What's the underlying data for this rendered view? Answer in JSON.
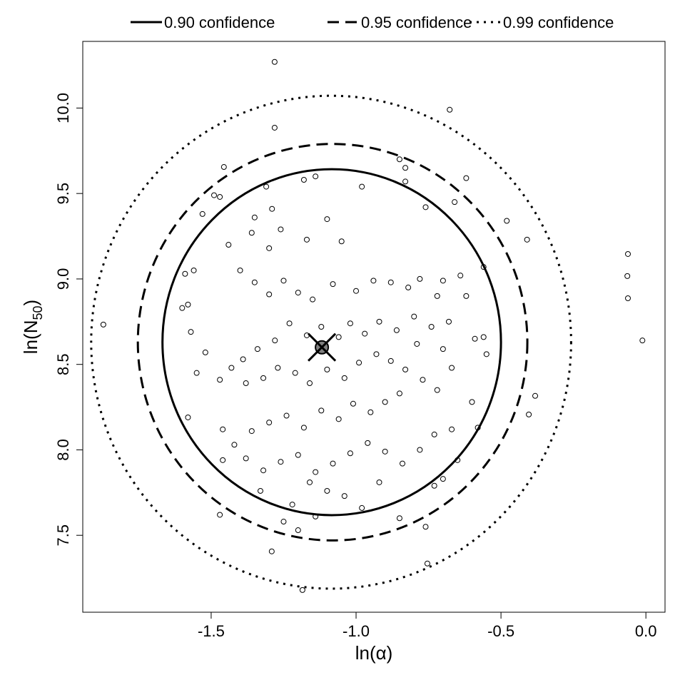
{
  "chart_data": {
    "type": "scatter",
    "title": "",
    "xlabel": "ln(α)",
    "ylabel_main": "ln(N",
    "ylabel_sub": "50",
    "ylabel_close": ")",
    "xlim": [
      -1.943,
      0.066
    ],
    "ylim": [
      7.05,
      10.39
    ],
    "xticks": [
      -1.5,
      -1.0,
      -0.5,
      0.0
    ],
    "xtick_labels": [
      "-1.5",
      "-1.0",
      "-0.5",
      "0.0"
    ],
    "yticks": [
      7.5,
      8.0,
      8.5,
      9.0,
      9.5,
      10.0
    ],
    "ytick_labels": [
      "7.5",
      "8.0",
      "8.5",
      "9.0",
      "9.5",
      "10.0"
    ],
    "grid": false,
    "legend_placement": "top-outside",
    "legend": [
      {
        "label": "0.90 confidence",
        "style": "solid"
      },
      {
        "label": "0.95 confidence",
        "style": "dashed"
      },
      {
        "label": "0.99 confidence",
        "style": "dotted"
      }
    ],
    "point_estimate": {
      "x": -1.118,
      "y": 8.6
    },
    "confidence_regions": [
      {
        "level": 0.9,
        "style": "solid",
        "center": [
          -1.084,
          8.63
        ],
        "half_width_x": 0.584,
        "half_width_y": 1.012
      },
      {
        "level": 0.95,
        "style": "dashed",
        "center": [
          -1.081,
          8.63
        ],
        "half_width_x": 0.672,
        "half_width_y": 1.16
      },
      {
        "level": 0.99,
        "style": "dotted",
        "center": [
          -1.086,
          8.63
        ],
        "half_width_x": 0.828,
        "half_width_y": 1.442
      }
    ],
    "points": [
      [
        -1.281,
        10.27
      ],
      [
        -1.281,
        9.885
      ],
      [
        -0.677,
        9.99
      ],
      [
        -0.062,
        9.146
      ],
      [
        -0.064,
        9.017
      ],
      [
        -0.062,
        8.887
      ],
      [
        -0.012,
        8.64
      ],
      [
        -1.872,
        8.733
      ],
      [
        -1.185,
        7.18
      ],
      [
        -0.754,
        7.335
      ],
      [
        -1.291,
        7.406
      ],
      [
        -1.456,
        9.655
      ],
      [
        -0.382,
        8.316
      ],
      [
        -0.404,
        8.207
      ],
      [
        -0.62,
        9.59
      ],
      [
        -0.66,
        9.45
      ],
      [
        -0.48,
        9.34
      ],
      [
        -0.41,
        9.23
      ],
      [
        -0.85,
        9.7
      ],
      [
        -0.83,
        9.65
      ],
      [
        -1.14,
        9.6
      ],
      [
        -1.18,
        9.58
      ],
      [
        -1.31,
        9.54
      ],
      [
        -1.49,
        9.49
      ],
      [
        -1.47,
        9.48
      ],
      [
        -1.53,
        9.38
      ],
      [
        -1.35,
        9.36
      ],
      [
        -1.29,
        9.41
      ],
      [
        -1.59,
        9.03
      ],
      [
        -1.56,
        9.05
      ],
      [
        -1.6,
        8.83
      ],
      [
        -1.58,
        8.85
      ],
      [
        -1.57,
        8.69
      ],
      [
        -1.58,
        8.19
      ],
      [
        -1.55,
        8.45
      ],
      [
        -1.52,
        8.57
      ],
      [
        -1.47,
        8.41
      ],
      [
        -1.46,
        8.12
      ],
      [
        -1.46,
        7.94
      ],
      [
        -1.47,
        7.62
      ],
      [
        -1.25,
        7.58
      ],
      [
        -1.2,
        7.53
      ],
      [
        -1.14,
        7.61
      ],
      [
        -0.98,
        7.66
      ],
      [
        -0.85,
        7.6
      ],
      [
        -0.76,
        7.55
      ],
      [
        -0.73,
        7.79
      ],
      [
        -0.7,
        7.83
      ],
      [
        -0.65,
        7.94
      ],
      [
        -0.58,
        8.13
      ],
      [
        -0.6,
        8.28
      ],
      [
        -0.55,
        8.56
      ],
      [
        -0.56,
        8.66
      ],
      [
        -0.59,
        8.65
      ],
      [
        -0.62,
        8.9
      ],
      [
        -0.56,
        9.07
      ],
      [
        -0.64,
        9.02
      ],
      [
        -0.7,
        8.99
      ],
      [
        -0.76,
        9.42
      ],
      [
        -0.83,
        9.57
      ],
      [
        -0.98,
        9.54
      ],
      [
        -1.05,
        9.22
      ],
      [
        -1.1,
        9.35
      ],
      [
        -1.17,
        9.23
      ],
      [
        -1.26,
        9.29
      ],
      [
        -1.3,
        9.18
      ],
      [
        -1.36,
        9.27
      ],
      [
        -1.44,
        9.2
      ],
      [
        -1.4,
        9.05
      ],
      [
        -1.35,
        8.98
      ],
      [
        -1.3,
        8.91
      ],
      [
        -1.25,
        8.99
      ],
      [
        -1.2,
        8.92
      ],
      [
        -1.15,
        8.88
      ],
      [
        -1.08,
        8.97
      ],
      [
        -1.0,
        8.93
      ],
      [
        -0.94,
        8.99
      ],
      [
        -0.88,
        8.98
      ],
      [
        -0.82,
        8.95
      ],
      [
        -0.78,
        9.0
      ],
      [
        -0.72,
        8.9
      ],
      [
        -0.68,
        8.75
      ],
      [
        -0.74,
        8.72
      ],
      [
        -0.8,
        8.78
      ],
      [
        -0.86,
        8.7
      ],
      [
        -0.92,
        8.75
      ],
      [
        -0.97,
        8.68
      ],
      [
        -1.02,
        8.74
      ],
      [
        -1.06,
        8.66
      ],
      [
        -1.12,
        8.72
      ],
      [
        -1.17,
        8.67
      ],
      [
        -1.23,
        8.74
      ],
      [
        -1.28,
        8.64
      ],
      [
        -1.34,
        8.59
      ],
      [
        -1.39,
        8.53
      ],
      [
        -1.43,
        8.48
      ],
      [
        -1.38,
        8.39
      ],
      [
        -1.32,
        8.42
      ],
      [
        -1.27,
        8.48
      ],
      [
        -1.21,
        8.45
      ],
      [
        -1.16,
        8.39
      ],
      [
        -1.1,
        8.47
      ],
      [
        -1.04,
        8.42
      ],
      [
        -0.99,
        8.51
      ],
      [
        -0.93,
        8.56
      ],
      [
        -0.88,
        8.52
      ],
      [
        -0.83,
        8.47
      ],
      [
        -0.77,
        8.41
      ],
      [
        -0.72,
        8.35
      ],
      [
        -0.67,
        8.48
      ],
      [
        -0.7,
        8.59
      ],
      [
        -0.79,
        8.62
      ],
      [
        -0.85,
        8.33
      ],
      [
        -0.9,
        8.28
      ],
      [
        -0.95,
        8.22
      ],
      [
        -1.01,
        8.27
      ],
      [
        -1.06,
        8.18
      ],
      [
        -1.12,
        8.23
      ],
      [
        -1.18,
        8.13
      ],
      [
        -1.24,
        8.2
      ],
      [
        -1.3,
        8.16
      ],
      [
        -1.36,
        8.11
      ],
      [
        -1.42,
        8.03
      ],
      [
        -1.38,
        7.95
      ],
      [
        -1.32,
        7.88
      ],
      [
        -1.26,
        7.93
      ],
      [
        -1.2,
        7.97
      ],
      [
        -1.14,
        7.87
      ],
      [
        -1.08,
        7.92
      ],
      [
        -1.02,
        7.98
      ],
      [
        -0.96,
        8.04
      ],
      [
        -0.9,
        7.99
      ],
      [
        -0.84,
        7.92
      ],
      [
        -0.78,
        8.0
      ],
      [
        -0.73,
        8.09
      ],
      [
        -0.67,
        8.12
      ],
      [
        -1.16,
        7.81
      ],
      [
        -1.1,
        7.76
      ],
      [
        -1.04,
        7.73
      ],
      [
        -0.92,
        7.81
      ],
      [
        -1.22,
        7.68
      ],
      [
        -1.33,
        7.76
      ]
    ]
  }
}
